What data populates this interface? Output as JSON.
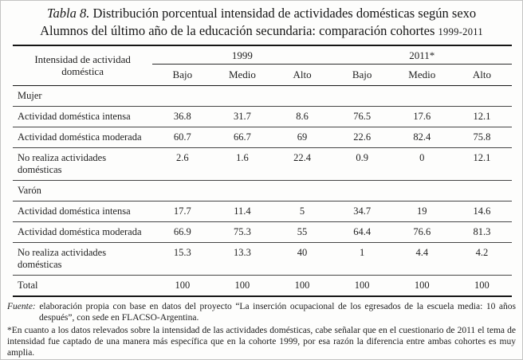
{
  "title": {
    "prefix": "Tabla 8.",
    "line1": " Distribución porcentual intensidad de actividades domésticas según sexo",
    "line2": "Alumnos del último año de la educación secundaria: comparación cohortes ",
    "years": "1999-2011"
  },
  "table": {
    "row_header": "Intensidad de actividad doméstica",
    "groups": [
      {
        "label": "1999",
        "cols": [
          "Bajo",
          "Medio",
          "Alto"
        ]
      },
      {
        "label": "2011*",
        "cols": [
          "Bajo",
          "Medio",
          "Alto"
        ]
      }
    ],
    "sections": [
      {
        "label": "Mujer",
        "rows": [
          {
            "label": "Actividad doméstica intensa",
            "values": [
              "36.8",
              "31.7",
              "8.6",
              "76.5",
              "17.6",
              "12.1"
            ]
          },
          {
            "label": "Actividad doméstica moderada",
            "values": [
              "60.7",
              "66.7",
              "69",
              "22.6",
              "82.4",
              "75.8"
            ]
          },
          {
            "label": "No realiza actividades domésticas",
            "values": [
              "2.6",
              "1.6",
              "22.4",
              "0.9",
              "0",
              "12.1"
            ]
          }
        ]
      },
      {
        "label": "Varón",
        "rows": [
          {
            "label": "Actividad doméstica intensa",
            "values": [
              "17.7",
              "11.4",
              "5",
              "34.7",
              "19",
              "14.6"
            ]
          },
          {
            "label": "Actividad doméstica moderada",
            "values": [
              "66.9",
              "75.3",
              "55",
              "64.4",
              "76.6",
              "81.3"
            ]
          },
          {
            "label": "No realiza actividades domésticas",
            "values": [
              "15.3",
              "13.3",
              "40",
              "1",
              "4.4",
              "4.2"
            ]
          }
        ]
      }
    ],
    "total": {
      "label": "Total",
      "values": [
        "100",
        "100",
        "100",
        "100",
        "100",
        "100"
      ]
    }
  },
  "notes": {
    "fuente_label": "Fuente:",
    "fuente_text": " elaboración propia con base en datos del proyecto “La inserción ocupacional de los egresados de la escuela media: 10 años después”, con sede en FLACSO-Argentina.",
    "footnote": "*En cuanto a los datos relevados sobre la intensidad de las actividades domésticas, cabe señalar que en el cuestionario de 2011 el tema de intensidad fue captado de una manera más específica que en la cohorte 1999, por esa razón la diferencia entre ambas cohortes es muy amplia."
  },
  "colors": {
    "text": "#1c1c1c",
    "rule_thick": "#161616",
    "rule_thin": "#454545",
    "background": "#fdfdfc"
  }
}
